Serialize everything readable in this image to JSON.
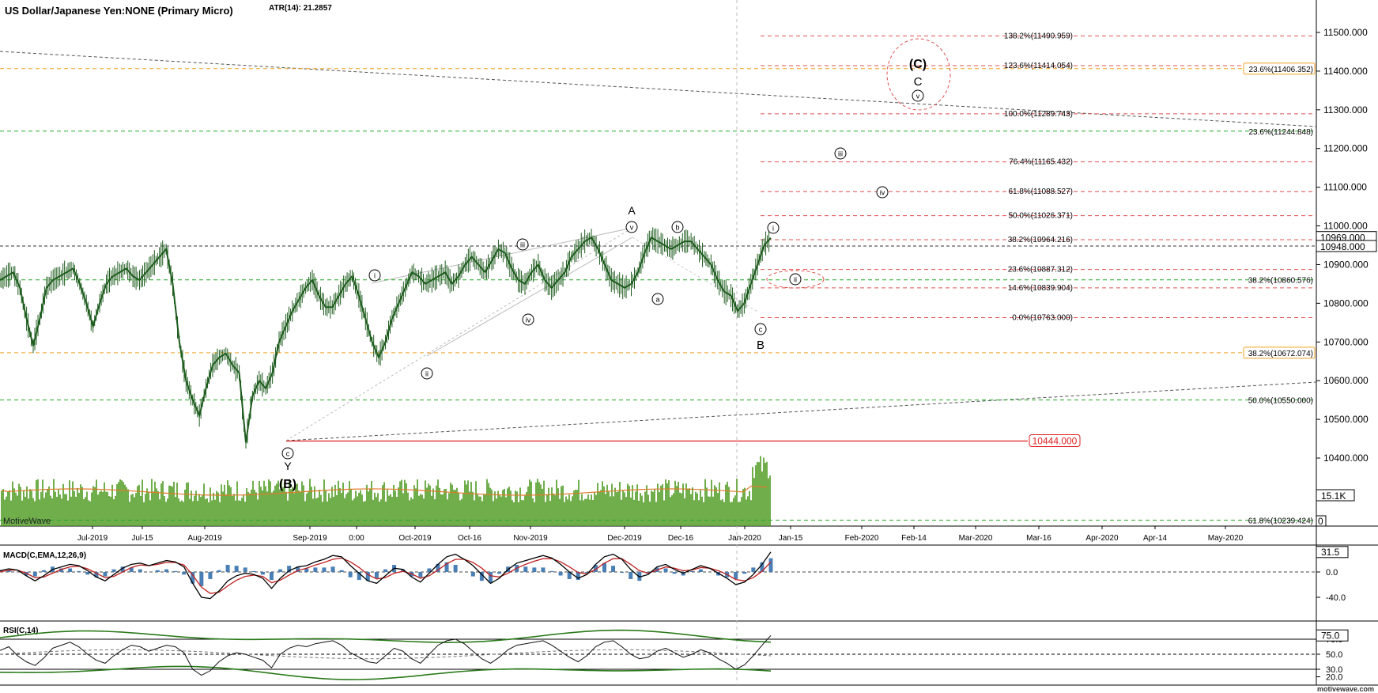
{
  "header": {
    "title": "US Dollar/Japanese Yen:NONE (Primary Micro)",
    "atr": "ATR(14): 21.2857"
  },
  "watermark": "MotiveWave",
  "footer_brand": "motivewave.com",
  "colors": {
    "price": "#1e5c1e",
    "volume": "#4c9a1f",
    "volume_avg": "#e07b2a",
    "fib_red": "#e05050",
    "fib_orange": "#f0a020",
    "fib_green": "#22aa22",
    "macd_line": "#000000",
    "signal_line": "#c02020",
    "histogram": "#4a7fb5",
    "rsi_band": "#2a7a1a",
    "support_red": "#e02020"
  },
  "chart_data": {
    "type": "line",
    "price_axis": {
      "ticks": [
        "11500.000",
        "11400.000",
        "11300.000",
        "11200.000",
        "11100.000",
        "11000.000",
        "10900.000",
        "10800.000",
        "10700.000",
        "10600.000",
        "10500.000",
        "10400.000"
      ],
      "tick_values": [
        11500,
        11400,
        11300,
        11200,
        11100,
        11000,
        10900,
        10800,
        10700,
        10600,
        10500,
        10400
      ],
      "current_high": "10969.000",
      "current_price": "10948.000",
      "volume_label": "15.1K",
      "volume_zero": "0"
    },
    "x_axis_labels": [
      "Jul-2019",
      "Jul-15",
      "Aug-2019",
      "Sep-2019",
      "0:00",
      "Oct-2019",
      "Oct-16",
      "Nov-2019",
      "Dec-2019",
      "Dec-16",
      "Jan-2020",
      "Jan-15",
      "Feb-2020",
      "Feb-14",
      "Mar-2020",
      "Mar-16",
      "Apr-2020",
      "Apr-14",
      "May-2020"
    ],
    "price_path": [
      [
        10860,
        10870,
        10880,
        10840,
        10760,
        10690,
        10760,
        10840,
        10860,
        10870,
        10880,
        10890,
        10850,
        10800,
        10740,
        10800,
        10850,
        10870,
        10880,
        10890,
        10870,
        10860,
        10880,
        10900,
        10920,
        10940,
        10850,
        10700,
        10600,
        10550,
        10510,
        10580,
        10640,
        10660,
        10670,
        10640,
        10620,
        10440,
        10560,
        10600,
        10580,
        10620,
        10700,
        10740,
        10780,
        10810,
        10840,
        10860,
        10820,
        10790,
        10790,
        10820,
        10850,
        10870,
        10820,
        10760,
        10700,
        10660,
        10700,
        10760,
        10800,
        10840,
        10880,
        10870,
        10850,
        10860,
        10870,
        10880,
        10850,
        10870,
        10900,
        10920,
        10900,
        10880,
        10910,
        10940,
        10930,
        10890,
        10860,
        10850,
        10880,
        10900,
        10860,
        10840,
        10860,
        10880,
        10920,
        10940,
        10960,
        10970,
        10940,
        10900,
        10860,
        10850,
        10840,
        10850,
        10880,
        10930,
        10970,
        10960,
        10950,
        10940,
        10950,
        10960,
        10960,
        10940,
        10920,
        10900,
        10860,
        10830,
        10820,
        10780,
        10800,
        10850,
        10900,
        10950,
        10969
      ]
    ],
    "fib_right": [
      {
        "label": "138.2%(11490.959)",
        "value": 11490.959
      },
      {
        "label": "123.6%(11414.054)",
        "value": 11414.054
      },
      {
        "label": "100.0%(11289.743)",
        "value": 11289.743
      },
      {
        "label": "76.4%(11165.432)",
        "value": 11165.432
      },
      {
        "label": "61.8%(11088.527)",
        "value": 11088.527
      },
      {
        "label": "50.0%(11026.371)",
        "value": 11026.371
      },
      {
        "label": "38.2%(10964.216)",
        "value": 10964.216
      },
      {
        "label": "23.6%(10887.312)",
        "value": 10887.312
      },
      {
        "label": "14.6%(10839.904)",
        "value": 10839.904
      },
      {
        "label": "0.0%(10763.000)",
        "value": 10763.0
      }
    ],
    "fib_long": [
      {
        "label": "23.6%(11406.352)",
        "value": 11406.352,
        "color": "orange"
      },
      {
        "label": "23.6%(11244.848)",
        "value": 11244.848,
        "color": "green"
      },
      {
        "label": "38.2%(10860.576)",
        "value": 10860.576,
        "color": "green"
      },
      {
        "label": "38.2%(10672.074)",
        "value": 10672.074,
        "color": "orange"
      },
      {
        "label": "50.0%(10550.000)",
        "value": 10550.0,
        "color": "green"
      },
      {
        "label": "61.8%(10239.424)",
        "value": 10239.424,
        "color": "green"
      }
    ],
    "support_label": "10444.000",
    "support_value": 10444,
    "wave_labels": {
      "C_big": "(C)",
      "C": "C",
      "v_circ": "v",
      "iii_circ": "iii",
      "iv_circ": "iv",
      "i_circ_right": "i",
      "ii_circ_right": "ii",
      "A": "A",
      "v_A": "v",
      "b": "b",
      "a": "a",
      "c_B": "c",
      "B": "B",
      "i_left": "i",
      "ii_left": "ii",
      "iii_left": "iii",
      "iv_left": "iv",
      "c_Y": "c",
      "Y": "Y",
      "B_big": "(B)"
    },
    "macd": {
      "title": "MACD(C,EMA,12,26,9)",
      "ticks": [
        "0.0",
        "-40.0"
      ],
      "tick_values": [
        0,
        -40
      ],
      "current": "31.5",
      "macd_values": [
        2,
        5,
        3,
        -6,
        -14,
        -6,
        4,
        8,
        12,
        10,
        2,
        -8,
        -14,
        -4,
        6,
        12,
        14,
        10,
        14,
        18,
        16,
        8,
        -18,
        -40,
        -42,
        -30,
        -14,
        -6,
        -2,
        -4,
        -10,
        -26,
        -10,
        2,
        8,
        10,
        16,
        20,
        26,
        24,
        10,
        -2,
        -14,
        -18,
        -6,
        6,
        4,
        -8,
        -16,
        -2,
        12,
        24,
        28,
        20,
        10,
        -4,
        -18,
        -10,
        4,
        14,
        18,
        22,
        26,
        22,
        12,
        0,
        -10,
        -4,
        12,
        24,
        28,
        20,
        4,
        -8,
        -4,
        8,
        12,
        4,
        -2,
        4,
        10,
        6,
        -2,
        -10,
        -20,
        -16,
        -4,
        12,
        31.5
      ],
      "signal_values": [
        0,
        3,
        3,
        -2,
        -9,
        -8,
        -2,
        4,
        8,
        9,
        5,
        -2,
        -9,
        -7,
        0,
        7,
        11,
        10,
        12,
        15,
        15,
        11,
        -5,
        -24,
        -34,
        -32,
        -22,
        -13,
        -7,
        -5,
        -7,
        -17,
        -13,
        -5,
        2,
        6,
        11,
        15,
        20,
        22,
        16,
        7,
        -4,
        -11,
        -9,
        -2,
        1,
        -3,
        -10,
        -6,
        3,
        13,
        20,
        20,
        15,
        6,
        -6,
        -8,
        -2,
        6,
        12,
        17,
        21,
        21,
        16,
        8,
        -1,
        -3,
        4,
        14,
        21,
        21,
        12,
        2,
        -2,
        3,
        8,
        6,
        2,
        3,
        7,
        6,
        2,
        -4,
        -12,
        -14,
        -9,
        1,
        16
      ]
    },
    "rsi": {
      "title": "RSI(C,14)",
      "ticks": [
        "70.0",
        "50.0",
        "30.0",
        "20.0"
      ],
      "tick_values": [
        70,
        50,
        30,
        20
      ],
      "current": "75.0",
      "values": [
        55,
        60,
        48,
        40,
        35,
        45,
        58,
        62,
        66,
        60,
        50,
        42,
        38,
        48,
        56,
        62,
        60,
        54,
        58,
        62,
        60,
        52,
        30,
        22,
        28,
        40,
        48,
        52,
        50,
        46,
        42,
        32,
        50,
        58,
        62,
        60,
        64,
        66,
        68,
        62,
        52,
        46,
        40,
        38,
        48,
        58,
        54,
        44,
        38,
        50,
        62,
        68,
        70,
        64,
        54,
        44,
        38,
        46,
        56,
        62,
        64,
        66,
        68,
        62,
        54,
        46,
        40,
        48,
        60,
        66,
        68,
        60,
        50,
        44,
        46,
        54,
        58,
        52,
        46,
        50,
        56,
        52,
        44,
        38,
        30,
        36,
        48,
        62,
        75
      ]
    }
  }
}
